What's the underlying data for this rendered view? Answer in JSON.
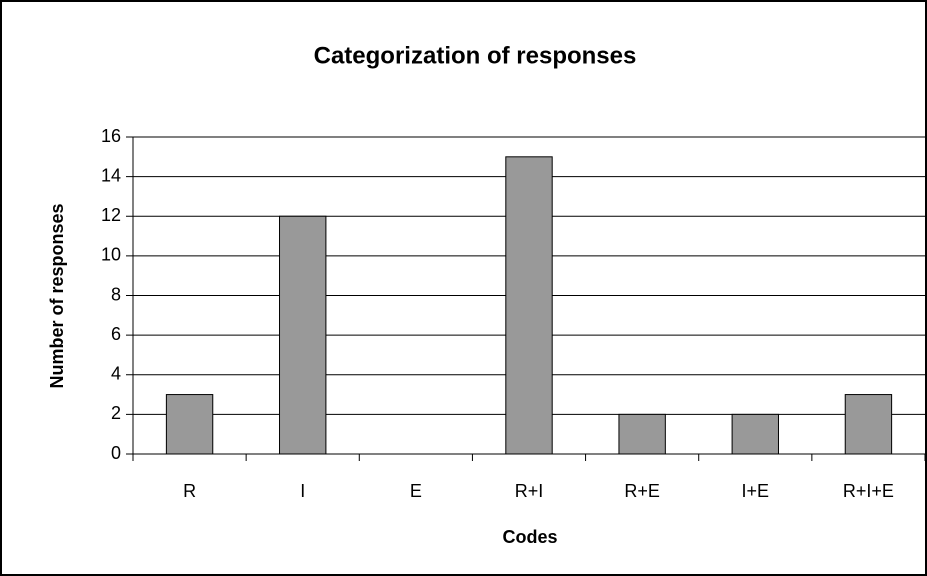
{
  "chart_data": {
    "type": "bar",
    "title": "Categorization of responses",
    "x_label": "Codes",
    "y_label": "Number of responses",
    "categories": [
      "R",
      "I",
      "E",
      "R+I",
      "R+E",
      "I+E",
      "R+I+E"
    ],
    "values": [
      3,
      12,
      0,
      15,
      2,
      2,
      3
    ],
    "color": "#999999",
    "ylim": [
      0,
      16
    ],
    "yticks": [
      0,
      2,
      4,
      6,
      8,
      10,
      12,
      14,
      16
    ],
    "grid": true
  }
}
